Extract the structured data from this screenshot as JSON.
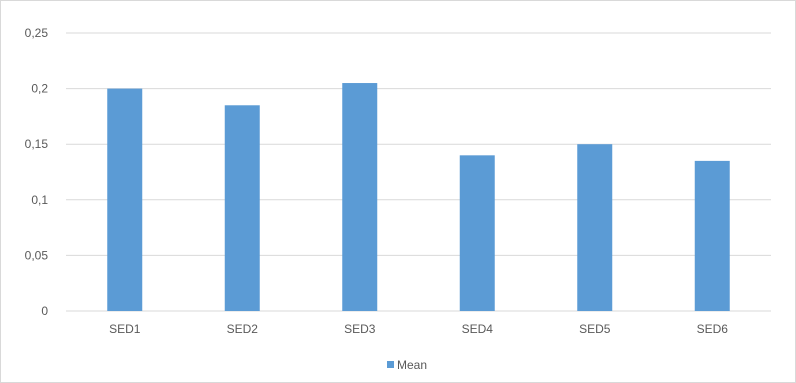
{
  "chart_data": {
    "type": "bar",
    "categories": [
      "SED1",
      "SED2",
      "SED3",
      "SED4",
      "SED5",
      "SED6"
    ],
    "series": [
      {
        "name": "Mean",
        "values": [
          0.2,
          0.185,
          0.205,
          0.14,
          0.15,
          0.135
        ],
        "color": "#5b9bd5"
      }
    ],
    "y_ticks": [
      {
        "value": 0,
        "label": "0"
      },
      {
        "value": 0.05,
        "label": "0,05"
      },
      {
        "value": 0.1,
        "label": "0,1"
      },
      {
        "value": 0.15,
        "label": "0,15"
      },
      {
        "value": 0.2,
        "label": "0,2"
      },
      {
        "value": 0.25,
        "label": "0,25"
      }
    ],
    "ylim": [
      0,
      0.25
    ],
    "grid": true,
    "grid_color": "#d9d9d9",
    "legend": {
      "position": "bottom",
      "label": "Mean"
    }
  }
}
